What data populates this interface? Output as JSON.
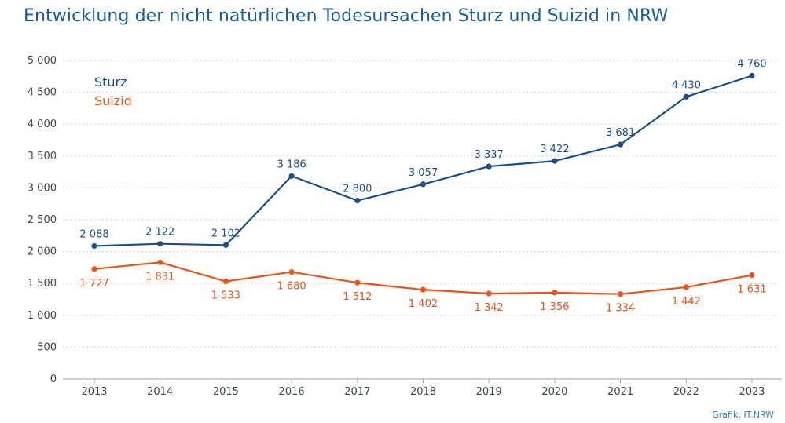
{
  "chart_data": {
    "type": "line",
    "title": "Entwicklung der nicht natürlichen Todesursachen Sturz und Suizid in NRW",
    "categories": [
      "2013",
      "2014",
      "2015",
      "2016",
      "2017",
      "2018",
      "2019",
      "2020",
      "2021",
      "2022",
      "2023"
    ],
    "series": [
      {
        "name": "Sturz",
        "color": "#1a4f8a",
        "values": [
          2088,
          2122,
          2102,
          3186,
          2800,
          3057,
          3337,
          3422,
          3681,
          4430,
          4760
        ],
        "labels": [
          "2 088",
          "2 122",
          "2 102",
          "3 186",
          "2 800",
          "3 057",
          "3 337",
          "3 422",
          "3 681",
          "4 430",
          "4 760"
        ]
      },
      {
        "name": "Suizid",
        "color": "#e8541a",
        "values": [
          1727,
          1831,
          1533,
          1680,
          1512,
          1402,
          1342,
          1356,
          1334,
          1442,
          1631
        ],
        "labels": [
          "1 727",
          "1 831",
          "1 533",
          "1 680",
          "1 512",
          "1 402",
          "1 342",
          "1 356",
          "1 334",
          "1 442",
          "1 631"
        ]
      }
    ],
    "ylim": [
      0,
      5000
    ],
    "yticks": [
      0,
      500,
      1000,
      1500,
      2000,
      2500,
      3000,
      3500,
      4000,
      4500,
      5000
    ],
    "ytick_labels": [
      "0",
      "500",
      "1 000",
      "1 500",
      "2 000",
      "2 500",
      "3 000",
      "3 500",
      "4 000",
      "4 500",
      "5 000"
    ],
    "grid": true,
    "legend_position": "top-left",
    "source": "Grafik: IT.NRW"
  }
}
